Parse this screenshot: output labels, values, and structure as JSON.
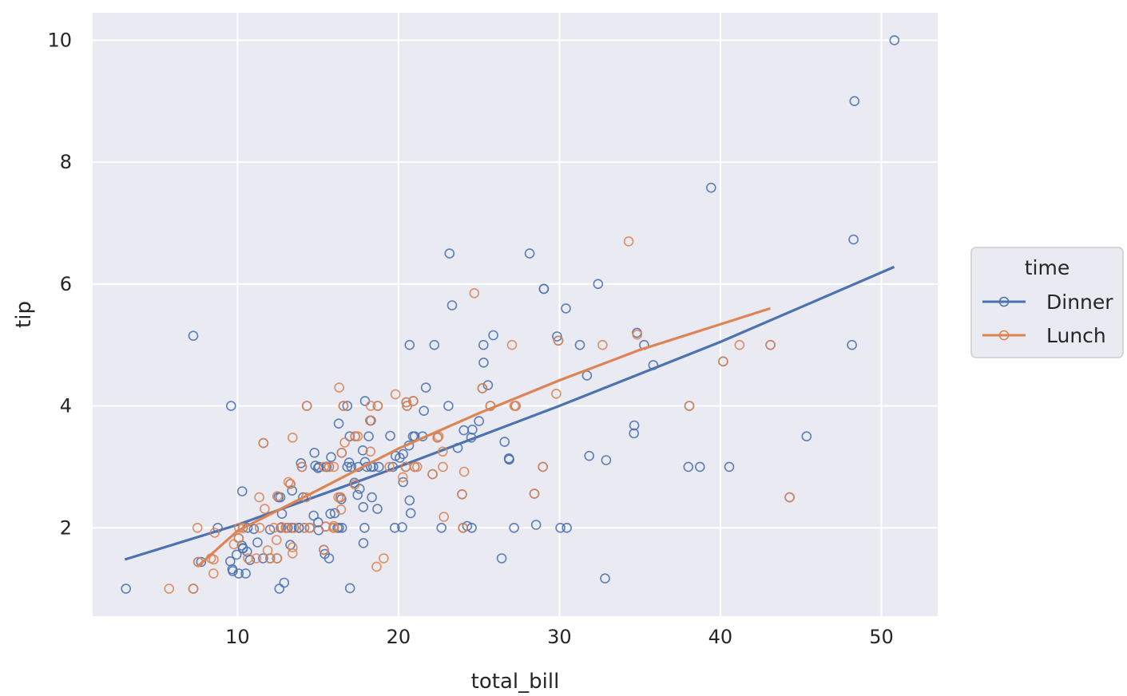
{
  "chart_data": {
    "type": "scatter",
    "xlabel": "total_bill",
    "ylabel": "tip",
    "xlim": [
      1,
      53.5
    ],
    "ylim": [
      0.55,
      10.45
    ],
    "xticks": [
      10,
      20,
      30,
      40,
      50
    ],
    "yticks": [
      2,
      4,
      6,
      8,
      10
    ],
    "grid": true,
    "legend": {
      "title": "time",
      "placement": "right"
    },
    "series": [
      {
        "name": "Dinner",
        "color": "#4c72b0",
        "marker": "hollow-circle",
        "trend": [
          [
            3.0,
            1.48
          ],
          [
            10,
            2.05
          ],
          [
            20,
            3.0
          ],
          [
            30,
            4.0
          ],
          [
            40,
            5.05
          ],
          [
            50.8,
            6.28
          ]
        ],
        "points": [
          [
            16.99,
            1.01
          ],
          [
            10.34,
            1.66
          ],
          [
            21.01,
            3.5
          ],
          [
            23.68,
            3.31
          ],
          [
            24.59,
            3.61
          ],
          [
            25.29,
            4.71
          ],
          [
            8.77,
            2.0
          ],
          [
            26.88,
            3.12
          ],
          [
            15.04,
            1.96
          ],
          [
            14.78,
            3.23
          ],
          [
            10.27,
            1.71
          ],
          [
            35.26,
            5.0
          ],
          [
            15.42,
            1.57
          ],
          [
            18.43,
            3.0
          ],
          [
            14.83,
            3.02
          ],
          [
            21.58,
            3.92
          ],
          [
            10.33,
            1.67
          ],
          [
            16.29,
            3.71
          ],
          [
            16.97,
            3.5
          ],
          [
            20.65,
            3.35
          ],
          [
            17.92,
            4.08
          ],
          [
            20.29,
            2.75
          ],
          [
            15.77,
            2.23
          ],
          [
            39.42,
            7.58
          ],
          [
            19.82,
            3.18
          ],
          [
            17.81,
            2.34
          ],
          [
            13.37,
            2.0
          ],
          [
            12.69,
            2.0
          ],
          [
            21.7,
            4.3
          ],
          [
            19.65,
            3.0
          ],
          [
            9.55,
            1.45
          ],
          [
            18.35,
            2.5
          ],
          [
            15.06,
            3.0
          ],
          [
            20.69,
            2.45
          ],
          [
            17.78,
            3.27
          ],
          [
            24.06,
            3.6
          ],
          [
            16.31,
            2.0
          ],
          [
            16.93,
            3.07
          ],
          [
            18.69,
            2.31
          ],
          [
            31.27,
            5.0
          ],
          [
            16.04,
            2.24
          ],
          [
            17.46,
            2.54
          ],
          [
            13.94,
            3.06
          ],
          [
            9.68,
            1.32
          ],
          [
            30.4,
            5.6
          ],
          [
            18.29,
            3.0
          ],
          [
            22.23,
            5.0
          ],
          [
            32.4,
            6.0
          ],
          [
            28.55,
            2.05
          ],
          [
            18.04,
            3.0
          ],
          [
            12.54,
            2.5
          ],
          [
            10.29,
            2.6
          ],
          [
            34.81,
            5.2
          ],
          [
            9.94,
            1.56
          ],
          [
            25.56,
            4.34
          ],
          [
            19.49,
            3.51
          ],
          [
            38.01,
            3.0
          ],
          [
            26.41,
            1.5
          ],
          [
            11.24,
            1.76
          ],
          [
            48.27,
            6.73
          ],
          [
            20.29,
            3.21
          ],
          [
            13.81,
            2.0
          ],
          [
            11.02,
            1.98
          ],
          [
            18.29,
            3.76
          ],
          [
            17.59,
            2.64
          ],
          [
            20.08,
            3.15
          ],
          [
            16.45,
            2.47
          ],
          [
            3.07,
            1.0
          ],
          [
            20.23,
            2.01
          ],
          [
            15.01,
            2.09
          ],
          [
            12.02,
            1.97
          ],
          [
            17.07,
            3.0
          ],
          [
            26.86,
            3.14
          ],
          [
            25.28,
            5.0
          ],
          [
            14.73,
            2.2
          ],
          [
            10.51,
            1.25
          ],
          [
            17.92,
            3.08
          ],
          [
            44.3,
            2.5
          ],
          [
            22.42,
            3.48
          ],
          [
            20.92,
            4.08
          ],
          [
            15.36,
            1.64
          ],
          [
            20.49,
            4.06
          ],
          [
            25.21,
            4.29
          ],
          [
            18.24,
            3.76
          ],
          [
            14.31,
            4.0
          ],
          [
            14.0,
            3.0
          ],
          [
            7.25,
            1.0
          ],
          [
            38.07,
            4.0
          ],
          [
            23.95,
            2.55
          ],
          [
            25.71,
            4.0
          ],
          [
            17.31,
            3.5
          ],
          [
            29.93,
            5.07
          ],
          [
            14.07,
            2.5
          ],
          [
            13.13,
            2.0
          ],
          [
            17.26,
            2.74
          ],
          [
            24.55,
            2.0
          ],
          [
            19.77,
            2.0
          ],
          [
            29.85,
            5.14
          ],
          [
            48.17,
            5.0
          ],
          [
            25.0,
            3.75
          ],
          [
            13.39,
            2.61
          ],
          [
            16.49,
            2.0
          ],
          [
            21.5,
            3.5
          ],
          [
            12.66,
            2.5
          ],
          [
            16.21,
            2.0
          ],
          [
            13.81,
            2.0
          ],
          [
            17.51,
            3.0
          ],
          [
            24.52,
            3.48
          ],
          [
            20.76,
            2.24
          ],
          [
            31.71,
            4.5
          ],
          [
            10.59,
            1.61
          ],
          [
            10.63,
            2.0
          ],
          [
            50.81,
            10.0
          ],
          [
            15.81,
            3.16
          ],
          [
            7.25,
            5.15
          ],
          [
            31.85,
            3.18
          ],
          [
            16.82,
            4.0
          ],
          [
            32.9,
            3.11
          ],
          [
            17.89,
            2.0
          ],
          [
            14.48,
            2.0
          ],
          [
            9.6,
            4.0
          ],
          [
            34.63,
            3.55
          ],
          [
            34.65,
            3.68
          ],
          [
            23.33,
            5.65
          ],
          [
            45.35,
            3.5
          ],
          [
            23.17,
            6.5
          ],
          [
            40.55,
            3.0
          ],
          [
            20.69,
            5.0
          ],
          [
            20.9,
            3.5
          ],
          [
            30.46,
            2.0
          ],
          [
            18.15,
            3.5
          ],
          [
            23.1,
            4.0
          ],
          [
            15.69,
            1.5
          ],
          [
            28.44,
            2.56
          ],
          [
            15.48,
            2.02
          ],
          [
            16.58,
            4.0
          ],
          [
            7.56,
            1.44
          ],
          [
            10.34,
            2.0
          ],
          [
            43.11,
            5.0
          ],
          [
            13.0,
            2.0
          ],
          [
            13.51,
            2.0
          ],
          [
            18.71,
            4.0
          ],
          [
            12.74,
            2.01
          ],
          [
            13.0,
            2.0
          ],
          [
            16.4,
            2.5
          ],
          [
            20.53,
            4.0
          ],
          [
            16.47,
            3.23
          ],
          [
            26.59,
            3.41
          ],
          [
            38.73,
            3.0
          ],
          [
            24.27,
            2.03
          ],
          [
            12.76,
            2.23
          ],
          [
            30.06,
            2.0
          ],
          [
            25.89,
            5.16
          ],
          [
            48.33,
            9.0
          ],
          [
            28.15,
            6.5
          ],
          [
            11.59,
            1.5
          ],
          [
            7.74,
            1.44
          ],
          [
            20.45,
            3.0
          ],
          [
            13.28,
            2.72
          ],
          [
            22.12,
            2.88
          ],
          [
            24.01,
            2.0
          ],
          [
            15.69,
            3.0
          ],
          [
            11.61,
            3.39
          ],
          [
            10.77,
            1.47
          ],
          [
            15.53,
            3.0
          ],
          [
            10.07,
            1.25
          ],
          [
            12.6,
            1.0
          ],
          [
            32.83,
            1.17
          ],
          [
            35.83,
            4.67
          ],
          [
            29.03,
            5.92
          ],
          [
            27.18,
            2.0
          ],
          [
            22.67,
            2.0
          ],
          [
            17.82,
            1.75
          ],
          [
            18.78,
            3.0
          ],
          [
            12.46,
            1.5
          ],
          [
            13.28,
            1.72
          ],
          [
            15.0,
            2.98
          ],
          [
            9.71,
            1.29
          ],
          [
            28.97,
            3.0
          ],
          [
            40.17,
            4.73
          ],
          [
            27.28,
            4.0
          ],
          [
            12.03,
            1.5
          ],
          [
            21.01,
            3.0
          ],
          [
            10.07,
            1.83
          ],
          [
            15.53,
            3.0
          ],
          [
            14.15,
            2.0
          ],
          [
            12.9,
            1.1
          ],
          [
            16.82,
            3.0
          ],
          [
            26.88,
            3.12
          ],
          [
            29.03,
            5.92
          ]
        ]
      },
      {
        "name": "Lunch",
        "color": "#dd8452",
        "marker": "hollow-circle",
        "trend": [
          [
            7.5,
            1.36
          ],
          [
            10,
            1.95
          ],
          [
            15,
            2.62
          ],
          [
            20,
            3.3
          ],
          [
            25,
            3.88
          ],
          [
            30,
            4.42
          ],
          [
            35,
            4.92
          ],
          [
            43.1,
            5.6
          ]
        ],
        "points": [
          [
            27.2,
            4.0
          ],
          [
            22.76,
            3.0
          ],
          [
            17.29,
            2.71
          ],
          [
            19.44,
            3.0
          ],
          [
            16.66,
            3.4
          ],
          [
            10.07,
            1.83
          ],
          [
            32.68,
            5.0
          ],
          [
            15.98,
            2.03
          ],
          [
            34.83,
            5.17
          ],
          [
            13.03,
            2.0
          ],
          [
            18.28,
            4.0
          ],
          [
            24.71,
            5.85
          ],
          [
            21.16,
            3.0
          ],
          [
            28.97,
            3.0
          ],
          [
            22.49,
            3.5
          ],
          [
            5.75,
            1.0
          ],
          [
            16.32,
            4.3
          ],
          [
            22.75,
            3.25
          ],
          [
            40.17,
            4.73
          ],
          [
            27.28,
            4.0
          ],
          [
            12.03,
            1.5
          ],
          [
            21.01,
            3.0
          ],
          [
            12.46,
            1.5
          ],
          [
            11.35,
            2.5
          ],
          [
            15.38,
            3.0
          ],
          [
            44.3,
            2.5
          ],
          [
            22.42,
            3.48
          ],
          [
            20.92,
            4.08
          ],
          [
            15.36,
            1.64
          ],
          [
            20.49,
            4.06
          ],
          [
            25.21,
            4.29
          ],
          [
            18.24,
            3.76
          ],
          [
            14.31,
            4.0
          ],
          [
            14.0,
            3.0
          ],
          [
            7.25,
            1.0
          ],
          [
            38.07,
            4.0
          ],
          [
            23.95,
            2.55
          ],
          [
            25.71,
            4.0
          ],
          [
            17.31,
            3.5
          ],
          [
            29.93,
            5.07
          ],
          [
            10.65,
            1.5
          ],
          [
            12.43,
            1.8
          ],
          [
            24.08,
            2.92
          ],
          [
            11.69,
            2.31
          ],
          [
            13.42,
            1.68
          ],
          [
            14.26,
            2.5
          ],
          [
            15.95,
            2.0
          ],
          [
            12.48,
            2.52
          ],
          [
            29.8,
            4.2
          ],
          [
            8.52,
            1.48
          ],
          [
            14.52,
            2.0
          ],
          [
            11.38,
            2.0
          ],
          [
            22.82,
            2.18
          ],
          [
            19.08,
            1.5
          ],
          [
            20.27,
            2.83
          ],
          [
            11.17,
            1.5
          ],
          [
            12.26,
            2.0
          ],
          [
            18.26,
            3.25
          ],
          [
            8.51,
            1.25
          ],
          [
            10.33,
            2.0
          ],
          [
            14.15,
            2.0
          ],
          [
            16.0,
            2.0
          ],
          [
            13.16,
            2.75
          ],
          [
            17.47,
            3.5
          ],
          [
            34.3,
            6.7
          ],
          [
            41.19,
            5.0
          ],
          [
            27.05,
            5.0
          ],
          [
            16.43,
            2.3
          ],
          [
            8.35,
            1.5
          ],
          [
            18.64,
            1.36
          ],
          [
            11.87,
            1.63
          ],
          [
            9.78,
            1.73
          ],
          [
            7.51,
            2.0
          ],
          [
            19.81,
            4.19
          ],
          [
            28.44,
            2.56
          ],
          [
            15.48,
            2.02
          ],
          [
            16.58,
            4.0
          ],
          [
            7.56,
            1.44
          ],
          [
            10.34,
            2.0
          ],
          [
            43.11,
            5.0
          ],
          [
            13.0,
            2.0
          ],
          [
            13.51,
            2.0
          ],
          [
            18.71,
            4.0
          ],
          [
            12.74,
            2.01
          ],
          [
            13.0,
            2.0
          ],
          [
            16.4,
            2.5
          ],
          [
            20.53,
            4.0
          ],
          [
            16.47,
            3.23
          ],
          [
            8.58,
            1.92
          ],
          [
            13.42,
            3.48
          ],
          [
            15.98,
            3.0
          ],
          [
            13.42,
            1.58
          ],
          [
            16.27,
            2.5
          ],
          [
            10.09,
            2.0
          ],
          [
            20.45,
            3.0
          ],
          [
            13.28,
            2.72
          ],
          [
            22.12,
            2.88
          ],
          [
            24.01,
            2.0
          ],
          [
            15.69,
            3.0
          ],
          [
            11.61,
            3.39
          ]
        ]
      }
    ]
  }
}
